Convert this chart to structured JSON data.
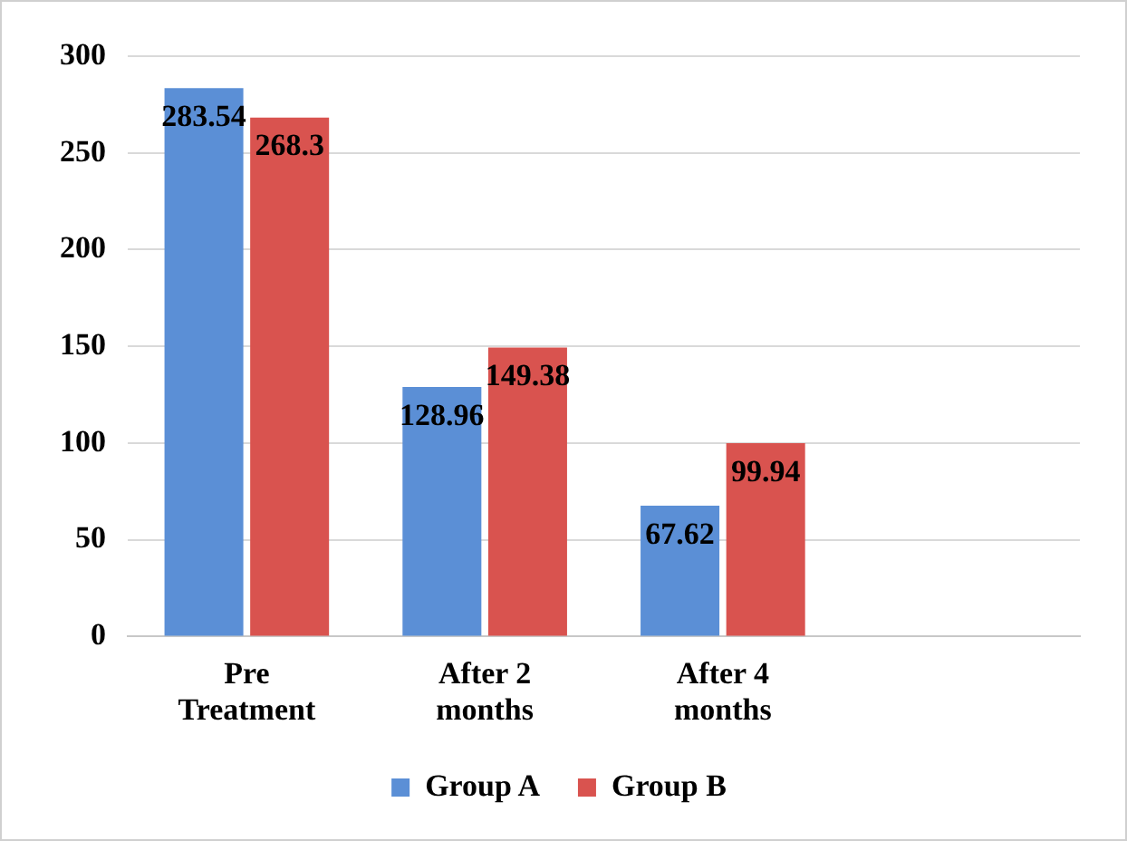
{
  "chart_data": {
    "type": "bar",
    "categories": [
      "Pre Treatment",
      "After 2 months",
      "After 4 months",
      null
    ],
    "series": [
      {
        "name": "Group A",
        "color": "#5b8fd6",
        "values": [
          283.54,
          128.96,
          67.62,
          null
        ]
      },
      {
        "name": "Group B",
        "color": "#d9534f",
        "values": [
          268.3,
          149.38,
          99.94,
          null
        ]
      }
    ],
    "ylim": [
      0,
      300
    ],
    "yticks": [
      0,
      50,
      100,
      150,
      200,
      250,
      300
    ],
    "grid": "y",
    "legend": "bottom",
    "data_labels": true
  }
}
